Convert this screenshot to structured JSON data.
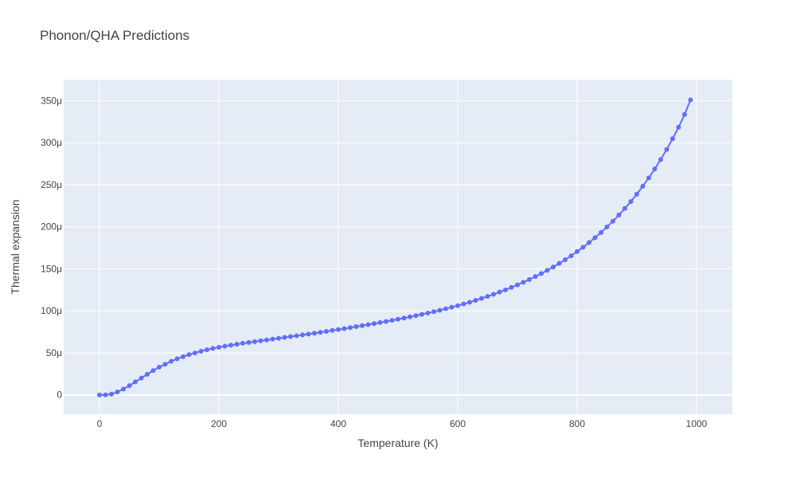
{
  "chart_data": {
    "type": "line",
    "title": "Phonon/QHA Predictions",
    "xlabel": "Temperature (K)",
    "ylabel": "Thermal expansion",
    "xlim": [
      -60,
      1060
    ],
    "ylim": [
      -2.3e-05,
      0.000375
    ],
    "x_ticks": [
      0,
      200,
      400,
      600,
      800,
      1000
    ],
    "x_tick_labels": [
      "0",
      "200",
      "400",
      "600",
      "800",
      "1000"
    ],
    "y_ticks": [
      0,
      5e-05,
      0.0001,
      0.00015,
      0.0002,
      0.00025,
      0.0003,
      0.00035
    ],
    "y_tick_labels": [
      "0",
      "50μ",
      "100μ",
      "150μ",
      "200μ",
      "250μ",
      "300μ",
      "350μ"
    ],
    "grid": true,
    "colors": {
      "series": "#636efa",
      "plot_bg": "#e5ecf6"
    },
    "series": [
      {
        "x": [
          0,
          10,
          20,
          30,
          40,
          50,
          60,
          70,
          80,
          90,
          100,
          110,
          120,
          130,
          140,
          150,
          160,
          170,
          180,
          190,
          200,
          210,
          220,
          230,
          240,
          250,
          260,
          270,
          280,
          290,
          300,
          310,
          320,
          330,
          340,
          350,
          360,
          370,
          380,
          390,
          400,
          410,
          420,
          430,
          440,
          450,
          460,
          470,
          480,
          490,
          500,
          510,
          520,
          530,
          540,
          550,
          560,
          570,
          580,
          590,
          600,
          610,
          620,
          630,
          640,
          650,
          660,
          670,
          680,
          690,
          700,
          710,
          720,
          730,
          740,
          750,
          760,
          770,
          780,
          790,
          800,
          810,
          820,
          830,
          840,
          850,
          860,
          870,
          880,
          890,
          900,
          910,
          920,
          930,
          940,
          950,
          960,
          970,
          980,
          990
        ],
        "y": [
          0,
          1e-07,
          1e-06,
          3.5e-06,
          7e-06,
          1.1e-05,
          1.55e-05,
          2e-05,
          2.45e-05,
          2.9e-05,
          3.3e-05,
          3.65e-05,
          4e-05,
          4.3e-05,
          4.55e-05,
          4.8e-05,
          5e-05,
          5.2e-05,
          5.38e-05,
          5.53e-05,
          5.67e-05,
          5.8e-05,
          5.92e-05,
          6.03e-05,
          6.14e-05,
          6.24e-05,
          6.34e-05,
          6.44e-05,
          6.54e-05,
          6.64e-05,
          6.74e-05,
          6.84e-05,
          6.94e-05,
          7.04e-05,
          7.14e-05,
          7.24e-05,
          7.34e-05,
          7.45e-05,
          7.56e-05,
          7.67e-05,
          7.78e-05,
          7.89e-05,
          8e-05,
          8.12e-05,
          8.24e-05,
          8.36e-05,
          8.48e-05,
          8.61e-05,
          8.74e-05,
          8.87e-05,
          9e-05,
          9.14e-05,
          9.28e-05,
          9.43e-05,
          9.58e-05,
          9.74e-05,
          9.9e-05,
          0.0001007,
          0.0001025,
          0.0001043,
          0.0001062,
          0.0001082,
          0.0001103,
          0.0001125,
          0.0001148,
          0.0001172,
          0.0001197,
          0.0001223,
          0.000125,
          0.0001279,
          0.0001309,
          0.000134,
          0.0001373,
          0.0001408,
          0.0001444,
          0.0001482,
          0.0001522,
          0.0001564,
          0.0001608,
          0.0001655,
          0.0001705,
          0.0001757,
          0.0001812,
          0.000187,
          0.0001932,
          0.0001998,
          0.0002067,
          0.000214,
          0.0002218,
          0.00023,
          0.0002388,
          0.0002482,
          0.0002581,
          0.0002687,
          0.00028,
          0.000292,
          0.0003048,
          0.0003185,
          0.0003335,
          0.000351
        ]
      }
    ]
  }
}
